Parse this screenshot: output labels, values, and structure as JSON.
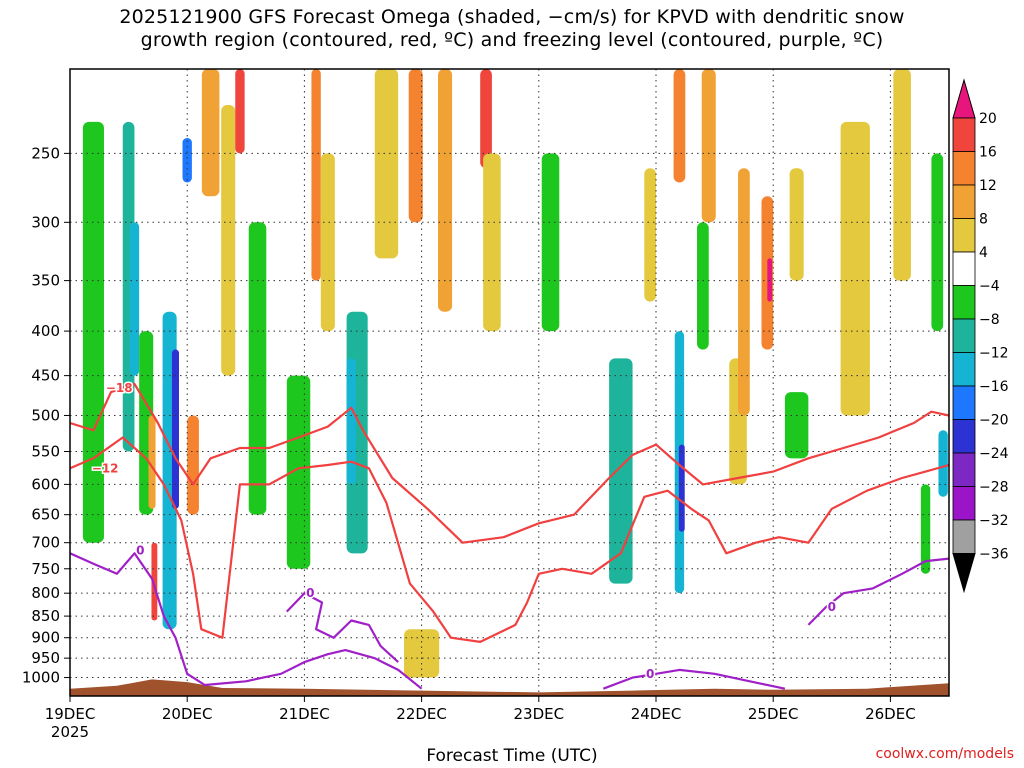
{
  "title_lines": [
    "2025121900 GFS Forecast Omega (shaded, −cm/s) for KPVD with dendritic snow",
    "growth region (contoured, red, ºC) and freezing level (contoured, purple, ºC)"
  ],
  "xlabel": "Forecast Time (UTC)",
  "credit": "coolwx.com/models",
  "chart_data": {
    "type": "heatmap",
    "title": "2025121900 GFS Forecast Omega (shaded, −cm/s) for KPVD with dendritic snow growth region (contoured, red, ºC) and freezing level (contoured, purple, ºC)",
    "xlabel": "Forecast Time (UTC)",
    "ylabel": "",
    "x_ticks": [
      "19DEC",
      "20DEC",
      "21DEC",
      "22DEC",
      "23DEC",
      "24DEC",
      "25DEC",
      "26DEC"
    ],
    "x_year": "2025",
    "xlim_days": [
      19.0,
      26.5
    ],
    "y_axis": "pressure_hPa_log_reversed",
    "ylim": [
      1050,
      200
    ],
    "y_ticks": [
      250,
      300,
      350,
      400,
      450,
      500,
      550,
      600,
      650,
      700,
      750,
      800,
      850,
      900,
      950,
      1000
    ],
    "grid": true,
    "colorbar": {
      "ticks": [
        "20",
        "16",
        "12",
        "8",
        "4",
        "−4",
        "−8",
        "−12",
        "−16",
        "−20",
        "−24",
        "−28",
        "−32",
        "−36"
      ],
      "bins": [
        {
          "from": 20,
          "to": 24,
          "color": "#e8157d"
        },
        {
          "from": 16,
          "to": 20,
          "color": "#f0453c"
        },
        {
          "from": 12,
          "to": 16,
          "color": "#f5822f"
        },
        {
          "from": 8,
          "to": 12,
          "color": "#f1a234"
        },
        {
          "from": 4,
          "to": 8,
          "color": "#e4c83e"
        },
        {
          "from": -4,
          "to": 4,
          "color": "#ffffff"
        },
        {
          "from": -8,
          "to": -4,
          "color": "#1ec71e"
        },
        {
          "from": -12,
          "to": -8,
          "color": "#1eb49b"
        },
        {
          "from": -16,
          "to": -12,
          "color": "#14b4d2"
        },
        {
          "from": -20,
          "to": -16,
          "color": "#1e78ff"
        },
        {
          "from": -24,
          "to": -20,
          "color": "#2d32d2"
        },
        {
          "from": -28,
          "to": -24,
          "color": "#7d28c3"
        },
        {
          "from": -32,
          "to": -28,
          "color": "#9b14c8"
        },
        {
          "from": -36,
          "to": -32,
          "color": "#a0a0a0"
        },
        {
          "from": -40,
          "to": -36,
          "color": "#000000"
        }
      ]
    },
    "omega_cells": [
      {
        "t": 19.2,
        "w": 0.18,
        "p1": 230,
        "p2": 700,
        "v": -6
      },
      {
        "t": 19.5,
        "w": 0.1,
        "p1": 230,
        "p2": 550,
        "v": -10
      },
      {
        "t": 19.55,
        "w": 0.08,
        "p1": 300,
        "p2": 450,
        "v": -14
      },
      {
        "t": 19.65,
        "w": 0.12,
        "p1": 400,
        "p2": 650,
        "v": -6
      },
      {
        "t": 19.7,
        "w": 0.06,
        "p1": 500,
        "p2": 640,
        "v": 10
      },
      {
        "t": 19.72,
        "w": 0.05,
        "p1": 700,
        "p2": 860,
        "v": 18
      },
      {
        "t": 19.85,
        "w": 0.12,
        "p1": 380,
        "p2": 880,
        "v": -14
      },
      {
        "t": 19.9,
        "w": 0.06,
        "p1": 420,
        "p2": 640,
        "v": -22
      },
      {
        "t": 20.0,
        "w": 0.08,
        "p1": 240,
        "p2": 270,
        "v": -18
      },
      {
        "t": 20.05,
        "w": 0.1,
        "p1": 500,
        "p2": 650,
        "v": 14
      },
      {
        "t": 20.2,
        "w": 0.15,
        "p1": 200,
        "p2": 280,
        "v": 10
      },
      {
        "t": 20.35,
        "w": 0.12,
        "p1": 220,
        "p2": 450,
        "v": 6
      },
      {
        "t": 20.45,
        "w": 0.08,
        "p1": 200,
        "p2": 250,
        "v": 18
      },
      {
        "t": 20.6,
        "w": 0.15,
        "p1": 300,
        "p2": 650,
        "v": -6
      },
      {
        "t": 20.95,
        "w": 0.2,
        "p1": 450,
        "p2": 750,
        "v": -8
      },
      {
        "t": 21.1,
        "w": 0.08,
        "p1": 200,
        "p2": 350,
        "v": 14
      },
      {
        "t": 21.2,
        "w": 0.12,
        "p1": 250,
        "p2": 400,
        "v": 6
      },
      {
        "t": 21.45,
        "w": 0.18,
        "p1": 380,
        "p2": 720,
        "v": -10
      },
      {
        "t": 21.4,
        "w": 0.08,
        "p1": 430,
        "p2": 600,
        "v": -14
      },
      {
        "t": 21.7,
        "w": 0.2,
        "p1": 200,
        "p2": 330,
        "v": 6
      },
      {
        "t": 21.95,
        "w": 0.12,
        "p1": 200,
        "p2": 300,
        "v": 12
      },
      {
        "t": 22.2,
        "w": 0.12,
        "p1": 200,
        "p2": 380,
        "v": 9
      },
      {
        "t": 22.55,
        "w": 0.1,
        "p1": 200,
        "p2": 260,
        "v": 17
      },
      {
        "t": 22.6,
        "w": 0.15,
        "p1": 250,
        "p2": 400,
        "v": 6
      },
      {
        "t": 22.0,
        "w": 0.3,
        "p1": 880,
        "p2": 1000,
        "v": 5
      },
      {
        "t": 23.1,
        "w": 0.15,
        "p1": 250,
        "p2": 400,
        "v": -6
      },
      {
        "t": 23.7,
        "w": 0.2,
        "p1": 430,
        "p2": 780,
        "v": -10
      },
      {
        "t": 23.95,
        "w": 0.1,
        "p1": 260,
        "p2": 370,
        "v": 6
      },
      {
        "t": 24.2,
        "w": 0.08,
        "p1": 400,
        "p2": 800,
        "v": -14
      },
      {
        "t": 24.22,
        "w": 0.05,
        "p1": 540,
        "p2": 680,
        "v": -22
      },
      {
        "t": 24.2,
        "w": 0.1,
        "p1": 200,
        "p2": 270,
        "v": 12
      },
      {
        "t": 24.45,
        "w": 0.12,
        "p1": 200,
        "p2": 300,
        "v": 8
      },
      {
        "t": 24.4,
        "w": 0.1,
        "p1": 300,
        "p2": 420,
        "v": -6
      },
      {
        "t": 24.7,
        "w": 0.15,
        "p1": 430,
        "p2": 600,
        "v": 6
      },
      {
        "t": 24.75,
        "w": 0.1,
        "p1": 260,
        "p2": 500,
        "v": 8
      },
      {
        "t": 24.95,
        "w": 0.1,
        "p1": 280,
        "p2": 420,
        "v": 12
      },
      {
        "t": 24.97,
        "w": 0.04,
        "p1": 330,
        "p2": 370,
        "v": 20
      },
      {
        "t": 25.2,
        "w": 0.2,
        "p1": 470,
        "p2": 560,
        "v": -6
      },
      {
        "t": 25.2,
        "w": 0.12,
        "p1": 260,
        "p2": 350,
        "v": 4
      },
      {
        "t": 25.7,
        "w": 0.25,
        "p1": 230,
        "p2": 500,
        "v": 5
      },
      {
        "t": 26.1,
        "w": 0.15,
        "p1": 200,
        "p2": 350,
        "v": 5
      },
      {
        "t": 26.4,
        "w": 0.1,
        "p1": 250,
        "p2": 400,
        "v": -6
      },
      {
        "t": 26.45,
        "w": 0.08,
        "p1": 520,
        "p2": 620,
        "v": -16
      },
      {
        "t": 26.3,
        "w": 0.08,
        "p1": 600,
        "p2": 760,
        "v": -6
      }
    ],
    "contours": [
      {
        "kind": "dgz",
        "label": "−18",
        "color": "#f04040",
        "points": [
          [
            19.0,
            510
          ],
          [
            19.2,
            520
          ],
          [
            19.35,
            470
          ],
          [
            19.55,
            460
          ],
          [
            19.75,
            510
          ],
          [
            19.9,
            560
          ],
          [
            20.05,
            600
          ],
          [
            20.2,
            560
          ],
          [
            20.45,
            545
          ],
          [
            20.7,
            545
          ],
          [
            20.95,
            530
          ],
          [
            21.2,
            515
          ],
          [
            21.4,
            490
          ],
          [
            21.5,
            520
          ],
          [
            21.75,
            590
          ],
          [
            22.05,
            640
          ],
          [
            22.35,
            700
          ],
          [
            22.7,
            690
          ],
          [
            23.0,
            665
          ],
          [
            23.3,
            650
          ],
          [
            23.6,
            590
          ],
          [
            23.8,
            555
          ],
          [
            24.0,
            540
          ],
          [
            24.2,
            570
          ],
          [
            24.4,
            600
          ],
          [
            24.7,
            590
          ],
          [
            25.0,
            580
          ],
          [
            25.3,
            560
          ],
          [
            25.6,
            545
          ],
          [
            25.9,
            530
          ],
          [
            26.2,
            510
          ],
          [
            26.35,
            495
          ],
          [
            26.5,
            500
          ]
        ],
        "label_at": [
          19.42,
          465
        ]
      },
      {
        "kind": "dgz",
        "label": "−12",
        "color": "#f04040",
        "points": [
          [
            19.0,
            575
          ],
          [
            19.2,
            560
          ],
          [
            19.45,
            530
          ],
          [
            19.65,
            560
          ],
          [
            19.8,
            600
          ],
          [
            19.95,
            660
          ],
          [
            20.05,
            760
          ],
          [
            20.12,
            880
          ],
          [
            20.3,
            900
          ],
          [
            20.45,
            600
          ],
          [
            20.7,
            600
          ],
          [
            20.95,
            575
          ],
          [
            21.2,
            570
          ],
          [
            21.4,
            565
          ],
          [
            21.55,
            575
          ],
          [
            21.7,
            630
          ],
          [
            21.9,
            780
          ],
          [
            22.1,
            840
          ],
          [
            22.25,
            900
          ],
          [
            22.5,
            910
          ],
          [
            22.8,
            870
          ],
          [
            22.9,
            820
          ],
          [
            23.0,
            760
          ],
          [
            23.2,
            750
          ],
          [
            23.45,
            760
          ],
          [
            23.7,
            720
          ],
          [
            23.9,
            620
          ],
          [
            24.1,
            610
          ],
          [
            24.3,
            640
          ],
          [
            24.45,
            660
          ],
          [
            24.6,
            720
          ],
          [
            24.85,
            700
          ],
          [
            25.05,
            690
          ],
          [
            25.3,
            700
          ],
          [
            25.5,
            640
          ],
          [
            25.8,
            610
          ],
          [
            26.1,
            590
          ],
          [
            26.3,
            580
          ],
          [
            26.5,
            570
          ]
        ],
        "label_at": [
          19.3,
          575
        ]
      },
      {
        "kind": "freezing",
        "label": "0",
        "color": "#a020c8",
        "points": [
          [
            19.0,
            720
          ],
          [
            19.2,
            740
          ],
          [
            19.4,
            760
          ],
          [
            19.55,
            720
          ],
          [
            19.7,
            770
          ],
          [
            19.8,
            850
          ],
          [
            19.9,
            900
          ],
          [
            20.0,
            990
          ],
          [
            20.15,
            1020
          ],
          [
            20.5,
            1010
          ],
          [
            20.8,
            990
          ],
          [
            21.0,
            960
          ],
          [
            21.2,
            940
          ],
          [
            21.35,
            930
          ],
          [
            21.6,
            950
          ],
          [
            21.8,
            980
          ],
          [
            22.0,
            1030
          ]
        ],
        "label_at": [
          19.6,
          715
        ]
      },
      {
        "kind": "freezing",
        "label": "0",
        "color": "#a020c8",
        "points": [
          [
            20.85,
            840
          ],
          [
            21.0,
            800
          ],
          [
            21.15,
            820
          ],
          [
            21.1,
            880
          ],
          [
            21.25,
            900
          ],
          [
            21.4,
            860
          ],
          [
            21.55,
            870
          ],
          [
            21.65,
            920
          ],
          [
            21.8,
            960
          ]
        ],
        "label_at": [
          21.05,
          800
        ]
      },
      {
        "kind": "freezing",
        "label": "0",
        "color": "#a020c8",
        "points": [
          [
            23.55,
            1030
          ],
          [
            23.8,
            1000
          ],
          [
            24.0,
            990
          ],
          [
            24.2,
            980
          ],
          [
            24.5,
            990
          ],
          [
            24.8,
            1010
          ],
          [
            25.1,
            1030
          ]
        ],
        "label_at": [
          23.95,
          990
        ]
      },
      {
        "kind": "freezing",
        "label": "0",
        "color": "#a020c8",
        "points": [
          [
            25.3,
            870
          ],
          [
            25.45,
            830
          ],
          [
            25.6,
            800
          ],
          [
            25.85,
            790
          ],
          [
            26.1,
            760
          ],
          [
            26.3,
            735
          ],
          [
            26.5,
            730
          ]
        ],
        "label_at": [
          25.5,
          830
        ]
      }
    ]
  }
}
